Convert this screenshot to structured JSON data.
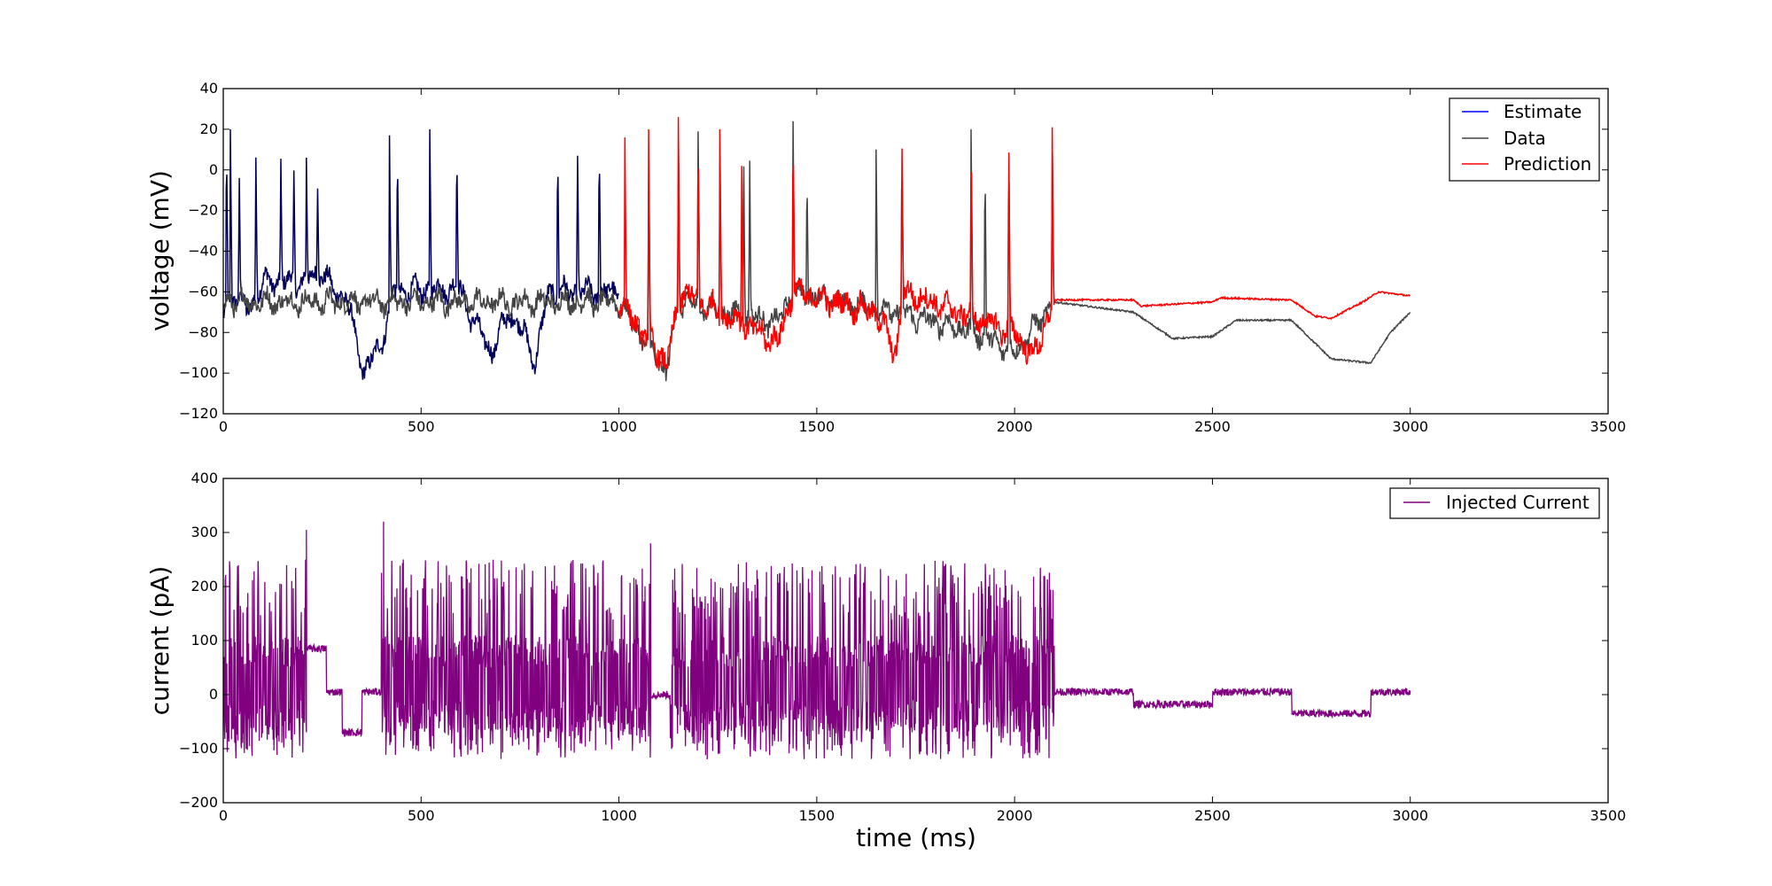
{
  "chart_data": [
    {
      "type": "line",
      "ylabel": "voltage (mV)",
      "xlabel": "",
      "xlim": [
        0,
        3500
      ],
      "ylim": [
        -120,
        40
      ],
      "xticks": [
        0,
        500,
        1000,
        1500,
        2000,
        2500,
        3000,
        3500
      ],
      "yticks": [
        -120,
        -100,
        -80,
        -60,
        -40,
        -20,
        0,
        20,
        40
      ],
      "legend_position": "top-right",
      "series": [
        {
          "name": "Estimate",
          "color": "#0000ff",
          "x_range": [
            0,
            1000
          ],
          "description": "spiking trace, resting around -60 mV with spikes up to ~20 mV; hyperpolarized dips to ~-100 mV near 350 ms and ~-95 mV near 790 ms",
          "spike_times": [
            8,
            18,
            40,
            82,
            145,
            178,
            210,
            238,
            420,
            440,
            522,
            590,
            845,
            895,
            950
          ],
          "spike_peaks": [
            20,
            20,
            4,
            16,
            14,
            7,
            6,
            -3,
            17,
            15,
            20,
            17,
            16,
            17,
            17
          ],
          "key_points": [
            [
              0,
              -72
            ],
            [
              30,
              -60
            ],
            [
              60,
              -70
            ],
            [
              100,
              -55
            ],
            [
              200,
              -55
            ],
            [
              250,
              -50
            ],
            [
              280,
              -60
            ],
            [
              310,
              -62
            ],
            [
              355,
              -100
            ],
            [
              400,
              -85
            ],
            [
              430,
              -60
            ],
            [
              600,
              -58
            ],
            [
              620,
              -70
            ],
            [
              680,
              -90
            ],
            [
              720,
              -70
            ],
            [
              760,
              -80
            ],
            [
              790,
              -95
            ],
            [
              820,
              -60
            ],
            [
              1000,
              -60
            ]
          ]
        },
        {
          "name": "Data",
          "color": "#444444",
          "x_range": [
            0,
            3000
          ],
          "description": "recorded trace; matches Estimate before 1000 ms; after 2100 ms decays to plateaus near -70, -83, -73 and -95 mV",
          "spike_times": [
            1075,
            1150,
            1200,
            1255,
            1315,
            1330,
            1440,
            1475,
            1650,
            1715,
            1890,
            1925,
            1985,
            2095
          ],
          "spike_peaks": [
            20,
            20,
            19,
            17,
            13,
            15,
            24,
            2,
            10,
            20,
            20,
            11,
            20,
            20
          ],
          "key_points": [
            [
              1000,
              -65
            ],
            [
              1120,
              -100
            ],
            [
              1150,
              -65
            ],
            [
              1400,
              -75
            ],
            [
              1440,
              -60
            ],
            [
              1700,
              -70
            ],
            [
              1900,
              -80
            ],
            [
              2000,
              -90
            ],
            [
              2100,
              -65
            ],
            [
              2300,
              -70
            ],
            [
              2400,
              -83
            ],
            [
              2500,
              -82
            ],
            [
              2560,
              -74
            ],
            [
              2700,
              -74
            ],
            [
              2800,
              -93
            ],
            [
              2900,
              -95
            ],
            [
              2950,
              -80
            ],
            [
              3000,
              -70
            ]
          ]
        },
        {
          "name": "Prediction",
          "color": "#ff0000",
          "x_range": [
            1000,
            3000
          ],
          "description": "model prediction; spikes 1000-2100 ms; afterwards near -64 mV with small steps to -67, -63, -73 and -64 mV",
          "spike_times": [
            1015,
            1075,
            1150,
            1200,
            1255,
            1310,
            1440,
            1715,
            1890,
            1985,
            2095
          ],
          "spike_peaks": [
            16,
            20,
            26,
            21,
            20,
            14,
            24,
            21,
            20,
            20,
            21
          ],
          "key_points": [
            [
              1000,
              -65
            ],
            [
              1120,
              -95
            ],
            [
              1160,
              -60
            ],
            [
              1400,
              -85
            ],
            [
              1440,
              -60
            ],
            [
              1650,
              -70
            ],
            [
              1700,
              -90
            ],
            [
              1720,
              -60
            ],
            [
              2000,
              -80
            ],
            [
              2050,
              -92
            ],
            [
              2100,
              -64
            ],
            [
              2300,
              -64
            ],
            [
              2320,
              -67
            ],
            [
              2500,
              -65
            ],
            [
              2520,
              -63
            ],
            [
              2700,
              -64
            ],
            [
              2760,
              -72
            ],
            [
              2800,
              -73
            ],
            [
              2880,
              -65
            ],
            [
              2920,
              -60
            ],
            [
              3000,
              -62
            ]
          ]
        }
      ]
    },
    {
      "type": "line",
      "ylabel": "current (pA)",
      "xlabel": "time (ms)",
      "xlim": [
        0,
        3500
      ],
      "ylim": [
        -200,
        400
      ],
      "xticks": [
        0,
        500,
        1000,
        1500,
        2000,
        2500,
        3000,
        3500
      ],
      "yticks": [
        -200,
        -100,
        0,
        100,
        200,
        300,
        400
      ],
      "legend_position": "top-right",
      "series": [
        {
          "name": "Injected Current",
          "color": "#800080",
          "x_range": [
            0,
            3000
          ],
          "description": "noisy pulse train between about -120 and 300 pA up to ~2100 ms, then step levels",
          "dense_segments": [
            [
              0,
              210
            ],
            [
              400,
              1080
            ],
            [
              1130,
              2100
            ]
          ],
          "dense_range": [
            -120,
            250
          ],
          "steps": [
            [
              210,
              260,
              85
            ],
            [
              260,
              300,
              5
            ],
            [
              300,
              350,
              -70
            ],
            [
              350,
              400,
              5
            ],
            [
              2100,
              2300,
              5
            ],
            [
              2300,
              2500,
              -18
            ],
            [
              2500,
              2700,
              5
            ],
            [
              2700,
              2900,
              -35
            ],
            [
              2900,
              3000,
              5
            ]
          ],
          "peaks": [
            [
              210,
              305
            ],
            [
              405,
              320
            ],
            [
              1080,
              280
            ]
          ]
        }
      ]
    }
  ]
}
